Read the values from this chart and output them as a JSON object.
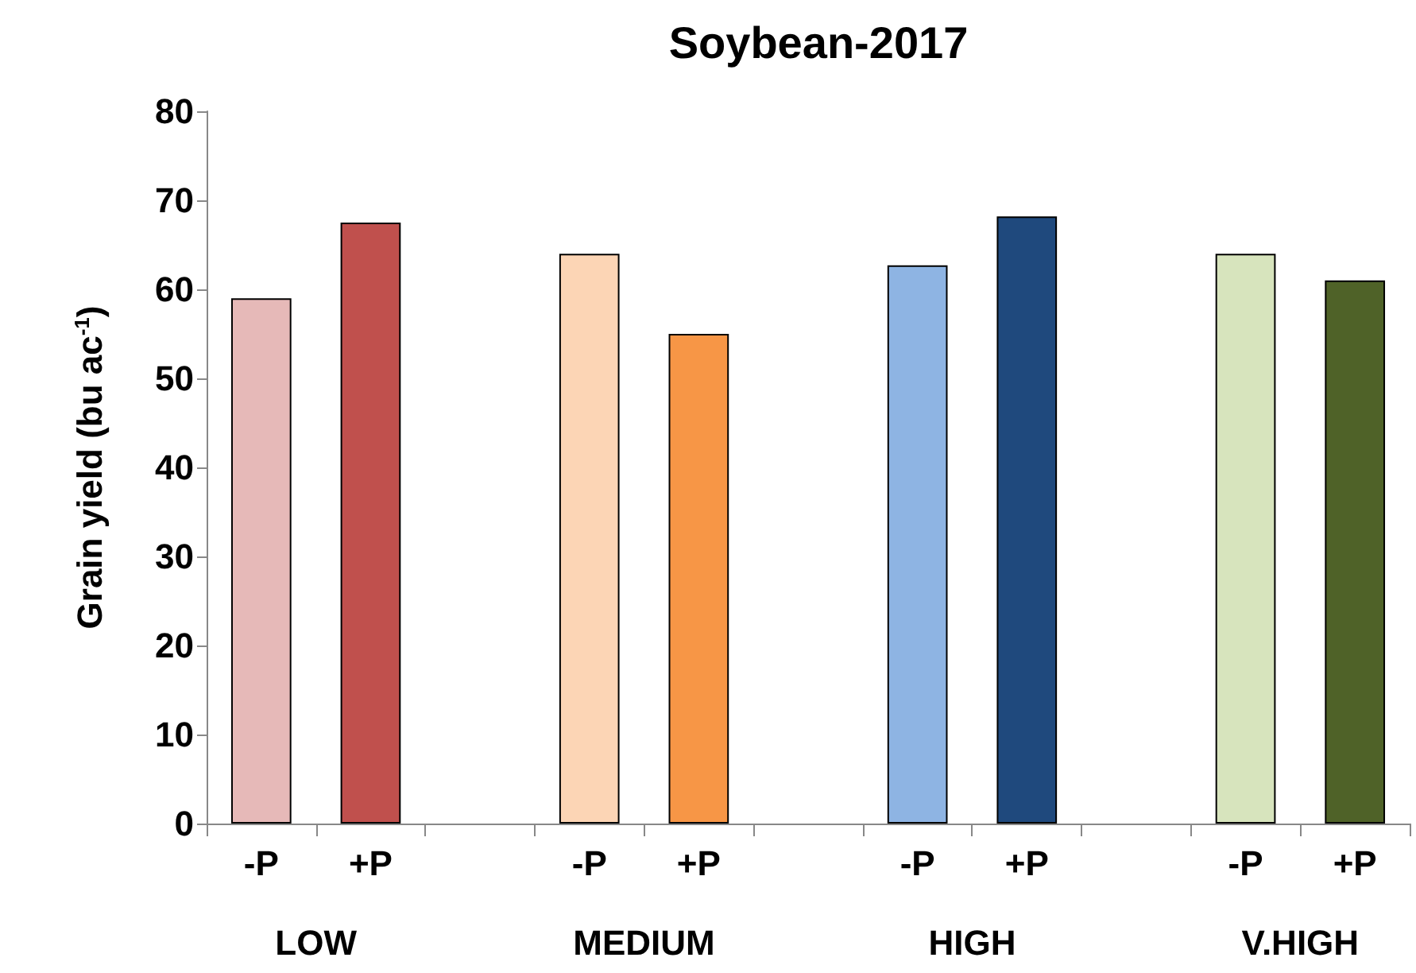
{
  "chart_data": {
    "type": "bar",
    "title": "Soybean-2017",
    "ylabel": "Grain yield (bu ac$^{-1}$)",
    "categories": [
      "-P",
      "+P",
      null,
      "-P",
      "+P",
      null,
      "-P",
      "+P",
      null,
      "-P",
      "+P"
    ],
    "values": [
      59,
      67.5,
      null,
      64,
      55,
      null,
      62.7,
      68.2,
      null,
      64,
      61
    ],
    "colors": [
      "#e6b9b8",
      "#c0504d",
      null,
      "#fcd5b5",
      "#f79646",
      null,
      "#8eb4e3",
      "#1f497d",
      null,
      "#d7e4bd",
      "#4f6228"
    ],
    "annotations": [
      "LOW",
      "MEDIUM",
      "HIGH",
      "V.HIGH"
    ],
    "ylim": [
      0,
      80
    ],
    "yticks": [
      0,
      10,
      20,
      30,
      40,
      50,
      60,
      70,
      80
    ],
    "grid": false
  }
}
